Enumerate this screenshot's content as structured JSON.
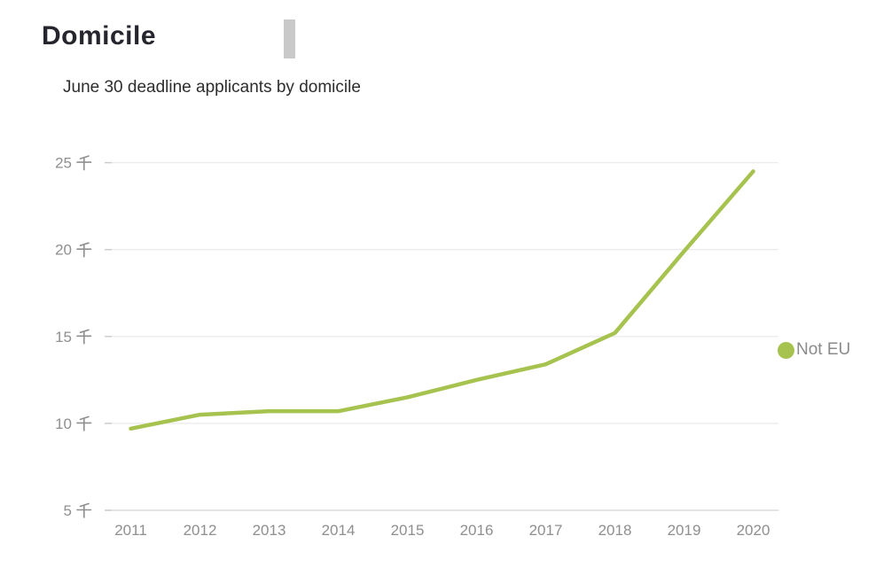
{
  "header": {
    "title": "Domicile"
  },
  "chart": {
    "subtitle": "June 30 deadline applicants by domicile",
    "legend": [
      {
        "label": "Not EU",
        "color": "#a6c24f"
      }
    ]
  },
  "chart_data": {
    "type": "line",
    "title": "Domicile",
    "subtitle": "June 30 deadline applicants by domicile",
    "x": [
      2011,
      2012,
      2013,
      2014,
      2015,
      2016,
      2017,
      2018,
      2019,
      2020
    ],
    "x_labels": [
      "2011",
      "2012",
      "2013",
      "2014",
      "2015",
      "2016",
      "2017",
      "2018",
      "2019",
      "2020"
    ],
    "series": [
      {
        "name": "Not EU",
        "color": "#a6c24f",
        "values": [
          9.7,
          10.5,
          10.7,
          10.7,
          11.5,
          12.5,
          13.4,
          15.2,
          19.9,
          24.5
        ]
      }
    ],
    "unit": "千",
    "y_ticks": [
      5,
      10,
      15,
      20,
      25
    ],
    "y_tick_labels": [
      "5 千",
      "10 千",
      "15 千",
      "20 千",
      "25 千"
    ],
    "ylim": [
      5,
      26
    ],
    "grid": "horizontal",
    "legend_position": "right",
    "markers": "none"
  },
  "colors": {
    "line": "#a6c24f",
    "grid": "#ececec",
    "axis": "#dcdcdc",
    "tick": "#cccccc",
    "axis_text": "#8f8f8f",
    "title_text": "#25252d",
    "subtitle_text": "#2d2d2d",
    "legend_text": "#8b8b8b",
    "cursor_bar": "#c9c9c9",
    "background": "#ffffff"
  }
}
